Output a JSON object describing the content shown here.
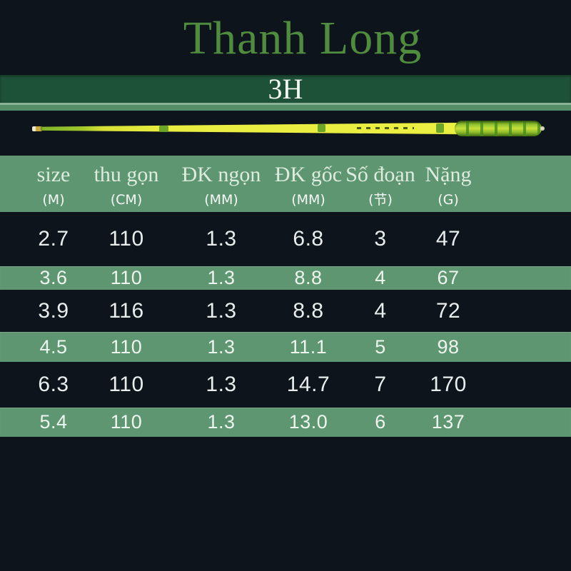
{
  "brand": {
    "title": "Thanh Long",
    "model": "3H"
  },
  "colors": {
    "background": "#0d141c",
    "model_band_green": "#1e5238",
    "divider_band_green": "#548e68",
    "table_green": "#5d9671",
    "title_green": "#4f8c3e",
    "rod_yellow": "#e9ed40",
    "text_light": "#e9edee"
  },
  "table": {
    "columns": [
      {
        "label": "size",
        "unit": "(M)"
      },
      {
        "label": "thu gọn",
        "unit": "(CM)"
      },
      {
        "label": "ĐK ngọn",
        "unit": "(MM)"
      },
      {
        "label": "ĐK gốc",
        "unit": "(MM)"
      },
      {
        "label": "Số đoạn",
        "unit": "(节)"
      },
      {
        "label": "Nặng",
        "unit": "(G)"
      }
    ],
    "rows": [
      [
        "2.7",
        "110",
        "1.3",
        "6.8",
        "3",
        "47"
      ],
      [
        "3.6",
        "110",
        "1.3",
        "8.8",
        "4",
        "67"
      ],
      [
        "3.9",
        "116",
        "1.3",
        "8.8",
        "4",
        "72"
      ],
      [
        "4.5",
        "110",
        "1.3",
        "11.1",
        "5",
        "98"
      ],
      [
        "6.3",
        "110",
        "1.3",
        "14.7",
        "7",
        "170"
      ],
      [
        "5.4",
        "110",
        "1.3",
        "13.0",
        "6",
        "137"
      ]
    ]
  }
}
